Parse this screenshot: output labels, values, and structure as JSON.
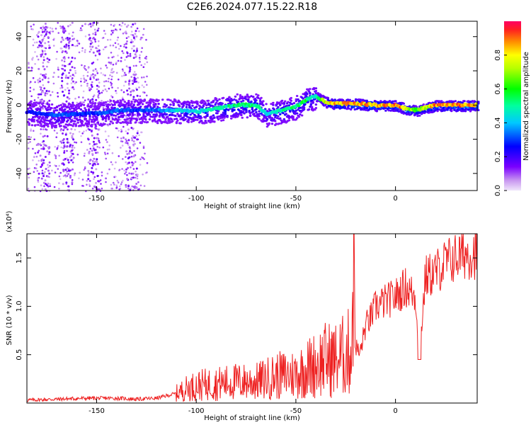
{
  "title": "C2E6.2024.077.15.22.R18",
  "chart_data": [
    {
      "type": "heatmap",
      "title": "C2E6.2024.077.15.22.R18",
      "xlabel": "Height of straight line (km)",
      "ylabel": "Frequency (Hz)",
      "xlim": [
        -185,
        41
      ],
      "ylim": [
        -50,
        49
      ],
      "xticks": [
        -150,
        -100,
        -50,
        0
      ],
      "yticks": [
        -40,
        -20,
        0,
        20,
        40
      ],
      "colorbar": {
        "label": "Normalized spectral amplitude",
        "range": [
          0,
          1
        ],
        "ticks": [
          0.0,
          0.2,
          0.4,
          0.6,
          0.8
        ],
        "colormap": "rainbow",
        "low_color": "#e8d8f8",
        "high_color": "#ff0050"
      },
      "ridge": {
        "description_points_x": [
          -185,
          -170,
          -160,
          -150,
          -140,
          -130,
          -120,
          -110,
          -100,
          -90,
          -80,
          -70,
          -65,
          -60,
          -50,
          -45,
          -40,
          -35,
          -30,
          -20,
          -10,
          0,
          5,
          10,
          20,
          30,
          41
        ],
        "frequency_y": [
          -4,
          -6,
          -5,
          -5,
          -3,
          -3,
          -3,
          -3,
          -4,
          -2,
          0,
          0,
          -5,
          -4,
          -1,
          3,
          5,
          2,
          1,
          1,
          0,
          0,
          -2,
          -3,
          0,
          0,
          0
        ],
        "amplitude": [
          0.25,
          0.35,
          0.3,
          0.3,
          0.35,
          0.3,
          0.35,
          0.45,
          0.45,
          0.5,
          0.55,
          0.55,
          0.45,
          0.5,
          0.55,
          0.6,
          0.45,
          0.8,
          0.9,
          0.9,
          0.9,
          0.92,
          0.9,
          0.6,
          0.92,
          0.92,
          0.92
        ]
      }
    },
    {
      "type": "line",
      "xlabel": "Height of straight line (km)",
      "ylabel": "SNR (10 * v/v)",
      "yunit_multiplier": "(x10⁴)",
      "xlim": [
        -185,
        41
      ],
      "ylim": [
        0,
        1.75
      ],
      "xticks": [
        -150,
        -100,
        -50,
        0
      ],
      "yticks": [
        0.5,
        1.0,
        1.5
      ],
      "ytick_labels": [
        "0.5",
        "1.0",
        "1.5"
      ],
      "color": "#ee2222",
      "series": [
        {
          "x": [
            -185,
            -170,
            -155,
            -140,
            -130,
            -120,
            -110,
            -105,
            -100,
            -90,
            -80,
            -70,
            -60,
            -50,
            -45,
            -40,
            -35,
            -30,
            -25,
            -22,
            -21,
            -20,
            -18,
            -15,
            -12,
            -10,
            -5,
            0,
            5,
            10,
            12,
            15,
            20,
            25,
            30,
            35,
            41
          ],
          "y": [
            0.03,
            0.04,
            0.05,
            0.05,
            0.04,
            0.05,
            0.1,
            0.15,
            0.18,
            0.2,
            0.22,
            0.22,
            0.28,
            0.3,
            0.35,
            0.4,
            0.45,
            0.45,
            0.5,
            0.55,
            1.75,
            0.6,
            0.5,
            0.8,
            0.9,
            1.0,
            1.05,
            1.1,
            1.2,
            1.1,
            0.5,
            1.3,
            1.35,
            1.45,
            1.5,
            1.55,
            1.55
          ]
        }
      ]
    }
  ]
}
